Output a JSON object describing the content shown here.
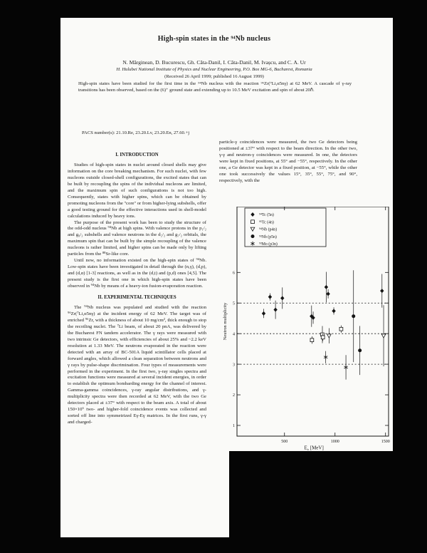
{
  "paper": {
    "title": "High-spin states in the ⁹⁴Nb nucleus",
    "authors": "N. Mărginean, D. Bucurescu, Gh. Căta-Danil, I. Căta-Danil, M. Ivașcu, and C. A. Ur",
    "affiliation": "H. Hulubei National Institute of Physics and Nuclear Engineering, P.O. Box MG-6, Bucharest, Romania",
    "received": "(Received 26 April 1999; published 16 August 1999)",
    "abstract": "High-spin states have been studied for the first time in the ⁹⁴Nb nucleus with the reaction ⁹⁶Zr(⁷Li,α5nγ) at 62 MeV. A cascade of γ-ray transitions has been observed, based on the (6)⁺ ground state and extending up to 10.5 MeV excitation and spin of about 20ℏ.",
    "pacs": "PACS number(s): 21.10.Re, 23.20.Lv, 23.20.En, 27.60.+j",
    "sections": {
      "intro_heading": "I. INTRODUCTION",
      "exp_heading": "II. EXPERIMENTAL TECHNIQUES"
    },
    "intro_paragraphs": [
      "Studies of high-spin states in nuclei around closed shells may give information on the core breaking mechanism. For such nuclei, with few nucleons outside closed-shell configurations, the excited states that can be built by recoupling the spins of the individual nucleons are limited, and the maximum spin of such configurations is not too high. Consequently, states with higher spins, which can be obtained by promoting nucleons from the ''core'' or from higher-lying subshells, offer a good testing ground for the effective interactions used in shell-model calculations induced by heavy ions.",
      "The purpose of the present work has been to study the structure of the odd-odd nucleus ⁹⁴Nb at high spins. With valence protons in the p₁/₂ and g₉/₂ subshells and valence neutrons in the d₅/₂ and g₇/₂ orbitals, the maximum spin that can be built by the simple recoupling of the valence nucleons is rather limited, and higher spins can be made only by lifting particles from the ⁸⁸Sr-like core.",
      "Until now, no information existed on the high-spin states of ⁹⁴Nb. Low-spin states have been investigated in detail through the (n,γ), (d,p), and (d,α) [1-3] reactions, as well as in the (d,t) and (p,d) ones [4,5]. The present study is the first one in which high-spin states have been observed in ⁹⁴Nb by means of a heavy-ion fusion-evaporation reaction."
    ],
    "exp_paragraphs": [
      "The ⁹⁴Nb nucleus was populated and studied with the reaction ⁹⁶Zr(⁷Li,α5nγ) at the incident energy of 62 MeV. The target was of enriched ⁹⁶Zr, with a thickness of about 10 mg/cm², thick enough to stop the recoiling nuclei. The ⁷Li beam, of about 20 pnA, was delivered by the Bucharest FN tandem accelerator. The γ rays were measured with two intrinsic Ge detectors, with efficiencies of about 25% and ~2.2 keV resolution at 1.33 MeV. The neutrons evaporated in the reaction were detected with an array of BC-501A liquid scintillator cells placed at forward angles, which allowed a clean separation between neutrons and γ rays by pulse-shape discrimination. Four types of measurements were performed in the experiment. In the first two, γ-ray singles spectra and excitation functions were measured at several incident energies, in order to establish the optimum bombarding energy for the channel of interest. Gamma-gamma coincidences, γ-ray angular distributions, and γ-multiplicity spectra were then recorded at 62 MeV, with the two Ge detectors placed at ±37° with respect to the beam axis. A total of about 150×10⁶ two- and higher-fold coincidence events was collected and sorted off line into symmetrized Eγ-Eγ matrices. In the first runs, γ-γ and charged-"
    ],
    "column2_continuation": "particle-γ coincidences were measured, the two Ge detectors being positioned at ±37° with respect to the beam direction. In the other two, γ-γ and neutron-γ coincidences were measured. In one, the detectors were kept in fixed positions, at 55° and −55°, respectively. In the other one, a Ge detector was kept in a fixed position, at −55°, while the other one took successively the values 15°, 35°, 55°, 75°, and 90°, respectively, with the"
  },
  "chart_data": {
    "type": "scatter",
    "title": "",
    "ylabel": "Neutron multiplicity",
    "xlabel": "Eγ [MeV]",
    "xlabel_parts": {
      "base": "E",
      "sub": "γ",
      "unit": " [MeV]"
    },
    "xlim": [
      30,
      1530
    ],
    "ylim": [
      0.65,
      8.15
    ],
    "xticks": [
      500,
      1000,
      1500
    ],
    "yticks": [
      1,
      2,
      3,
      4,
      5,
      6
    ],
    "dashed_lines_y": [
      3,
      4,
      5
    ],
    "grid": "dashed-horizontal",
    "legend_position": "top-left",
    "series": [
      {
        "name": "⁹⁴Tc (5n)",
        "symbol": "filled-diamond",
        "points": [
          [
            294,
            4.66,
            0.15
          ],
          [
            357,
            5.2,
            0.12
          ],
          [
            411,
            4.78,
            0.3
          ],
          [
            479,
            5.16,
            0.35
          ],
          [
            768,
            4.57,
            0.35
          ],
          [
            784,
            4.52,
            0.2
          ],
          [
            913,
            5.52,
            0.5
          ],
          [
            932,
            5.3,
            0.15
          ],
          [
            988,
            4.74,
            0.12
          ],
          [
            1465,
            5.4,
            0.55
          ]
        ]
      },
      {
        "name": "⁹⁵Tc (4n)",
        "symbol": "open-square",
        "points": [
          [
            772,
            3.79,
            0.12
          ],
          [
            875,
            3.97,
            0.28
          ],
          [
            880,
            3.88,
            0.12
          ],
          [
            1061,
            4.15,
            0.12
          ]
        ]
      },
      {
        "name": "⁹⁴Nb (p4n)",
        "symbol": "open-triangle-down",
        "points": [
          [
            941,
            3.93,
            0.25
          ],
          [
            1481,
            3.93,
            1.0
          ]
        ]
      },
      {
        "name": "⁹³Nb (p5n)",
        "symbol": "filled-circle",
        "points": [
          [
            1183,
            4.57,
            1.5
          ],
          [
            1246,
            3.45,
            0.8
          ]
        ]
      },
      {
        "name": "⁹³Mo (p3n)",
        "symbol": "asterisk",
        "points": [
          [
            908,
            3.23,
            0.2
          ],
          [
            1108,
            2.9,
            0.4
          ]
        ]
      }
    ]
  }
}
